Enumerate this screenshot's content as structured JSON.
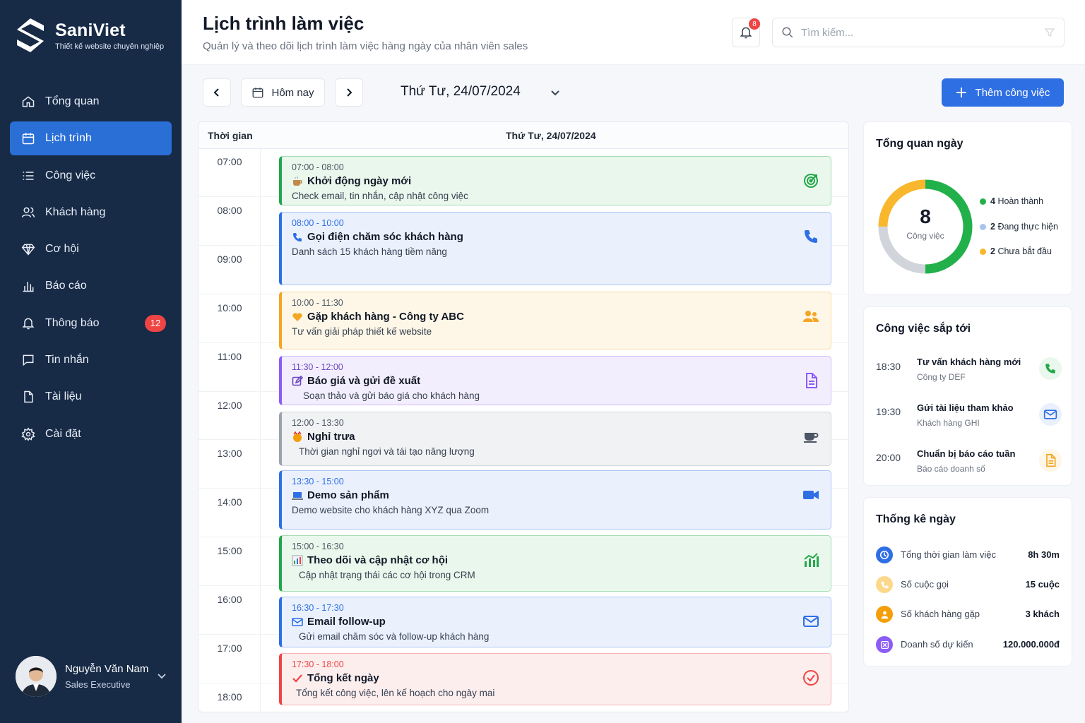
{
  "brand": {
    "name": "SaniViet",
    "tagline": "Thiết kế website chuyên nghiệp"
  },
  "sidebar": {
    "items": [
      {
        "label": "Tổng quan",
        "icon": "home-icon"
      },
      {
        "label": "Lịch trình",
        "icon": "calendar-icon",
        "active": true
      },
      {
        "label": "Công việc",
        "icon": "list-icon"
      },
      {
        "label": "Khách hàng",
        "icon": "users-icon"
      },
      {
        "label": "Cơ hội",
        "icon": "diamond-icon"
      },
      {
        "label": "Báo cáo",
        "icon": "bar-chart-icon"
      },
      {
        "label": "Thông báo",
        "icon": "bell-icon",
        "badge": "12"
      },
      {
        "label": "Tin nhắn",
        "icon": "message-icon"
      },
      {
        "label": "Tài liệu",
        "icon": "file-icon"
      },
      {
        "label": "Cài đặt",
        "icon": "gear-icon"
      }
    ]
  },
  "user": {
    "name": "Nguyễn Văn Nam",
    "role": "Sales Executive"
  },
  "header": {
    "title": "Lịch trình làm việc",
    "subtitle": "Quản lý và theo dõi lịch trình làm việc hàng ngày của nhân viên sales",
    "notification_count": "8",
    "search_placeholder": "Tìm kiếm..."
  },
  "toolbar": {
    "today_label": "Hôm nay",
    "date_label": "Thứ Tư, 24/07/2024",
    "add_label": "Thêm công việc"
  },
  "schedule": {
    "time_header": "Thời gian",
    "day_header": "Thứ Tư, 24/07/2024",
    "hours": [
      "07:00",
      "08:00",
      "09:00",
      "10:00",
      "11:00",
      "12:00",
      "13:00",
      "14:00",
      "15:00",
      "16:00",
      "17:00",
      "18:00"
    ],
    "events": [
      {
        "time": "07:00 - 08:00",
        "title": "Khởi động ngày mới",
        "desc": "Check email, tin nhắn, cập nhật công việc",
        "color": "#22a84a",
        "bg": "#eaf7ec",
        "icon": "target-icon"
      },
      {
        "time": "08:00 - 10:00",
        "title": "Gọi điện chăm sóc khách hàng",
        "desc": "Danh sách 15 khách hàng tiềm năng",
        "color": "#2f6fe4",
        "bg": "#eaf1fd",
        "icon": "phone-icon"
      },
      {
        "time": "10:00 - 11:30",
        "title": "Gặp khách hàng - Công ty ABC",
        "desc": "Tư vấn giải pháp thiết kế website",
        "color": "#f5a524",
        "bg": "#fef6e6",
        "icon": "group-icon"
      },
      {
        "time": "11:30 - 12:00",
        "title": "Báo giá và gửi đề xuất",
        "desc": "Soạn thảo và gửi báo giá cho khách hàng",
        "color": "#8b5cf6",
        "bg": "#f3eefd",
        "icon": "document-icon"
      },
      {
        "time": "12:00 - 13:30",
        "title": "Nghỉ trưa",
        "desc": "Thời gian nghỉ ngơi và tái tạo năng lượng",
        "color": "#9ca3af",
        "bg": "#f1f2f4",
        "icon": "coffee-icon"
      },
      {
        "time": "13:30 - 15:00",
        "title": "Demo sản phẩm",
        "desc": "Demo website cho khách hàng XYZ qua Zoom",
        "color": "#2f6fe4",
        "bg": "#eaf1fd",
        "icon": "video-icon"
      },
      {
        "time": "15:00 - 16:30",
        "title": "Theo dõi và cập nhật cơ hội",
        "desc": "Cập nhật trạng thái các cơ hội trong CRM",
        "color": "#22a84a",
        "bg": "#eaf7ec",
        "icon": "chart-icon"
      },
      {
        "time": "16:30 - 17:30",
        "title": "Email follow-up",
        "desc": "Gửi email chăm sóc và follow-up khách hàng",
        "color": "#2f6fe4",
        "bg": "#eaf1fd",
        "icon": "mail-icon"
      },
      {
        "time": "17:30 - 18:00",
        "title": "Tổng kết ngày",
        "desc": "Tổng kết công việc, lên kế hoạch cho ngày mai",
        "color": "#ef4444",
        "bg": "#fdeeee",
        "icon": "check-circle-icon"
      }
    ]
  },
  "overview": {
    "title": "Tổng quan ngày",
    "total": "8",
    "total_label": "Công việc",
    "legend": [
      {
        "count": "4",
        "label": "Hoàn thành",
        "color": "#22b04b",
        "value": 4
      },
      {
        "count": "2",
        "label": "Đang thực hiện",
        "color": "#a9c4ee",
        "value": 2
      },
      {
        "count": "2",
        "label": "Chưa bắt đầu",
        "color": "#f8b72c",
        "value": 2
      }
    ]
  },
  "upcoming": {
    "title": "Công việc sắp tới",
    "items": [
      {
        "time": "18:30",
        "title": "Tư vấn khách hàng mới",
        "sub": "Công ty DEF",
        "icon": "phone-icon",
        "color": "#22a84a",
        "bg": "#eaf7ec"
      },
      {
        "time": "19:30",
        "title": "Gửi tài liệu tham khảo",
        "sub": "Khách hàng GHI",
        "icon": "mail-icon",
        "color": "#2f6fe4",
        "bg": "#eaf1fd"
      },
      {
        "time": "20:00",
        "title": "Chuẩn bị báo cáo tuần",
        "sub": "Báo cáo doanh số",
        "icon": "document-icon",
        "color": "#f5a524",
        "bg": "#fef6e6"
      }
    ]
  },
  "stats": {
    "title": "Thống kê ngày",
    "items": [
      {
        "label": "Tổng thời gian làm việc",
        "value": "8h 30m",
        "icon": "clock-icon",
        "color": "#2f6fe4"
      },
      {
        "label": "Số cuộc gọi",
        "value": "15 cuộc",
        "icon": "phone-icon",
        "color": "#f8c14a"
      },
      {
        "label": "Số khách hàng gặp",
        "value": "3 khách",
        "icon": "user-icon",
        "color": "#f59e0b"
      },
      {
        "label": "Doanh số dự kiến",
        "value": "120.000.000đ",
        "icon": "money-icon",
        "color": "#8b5cf6"
      }
    ]
  }
}
